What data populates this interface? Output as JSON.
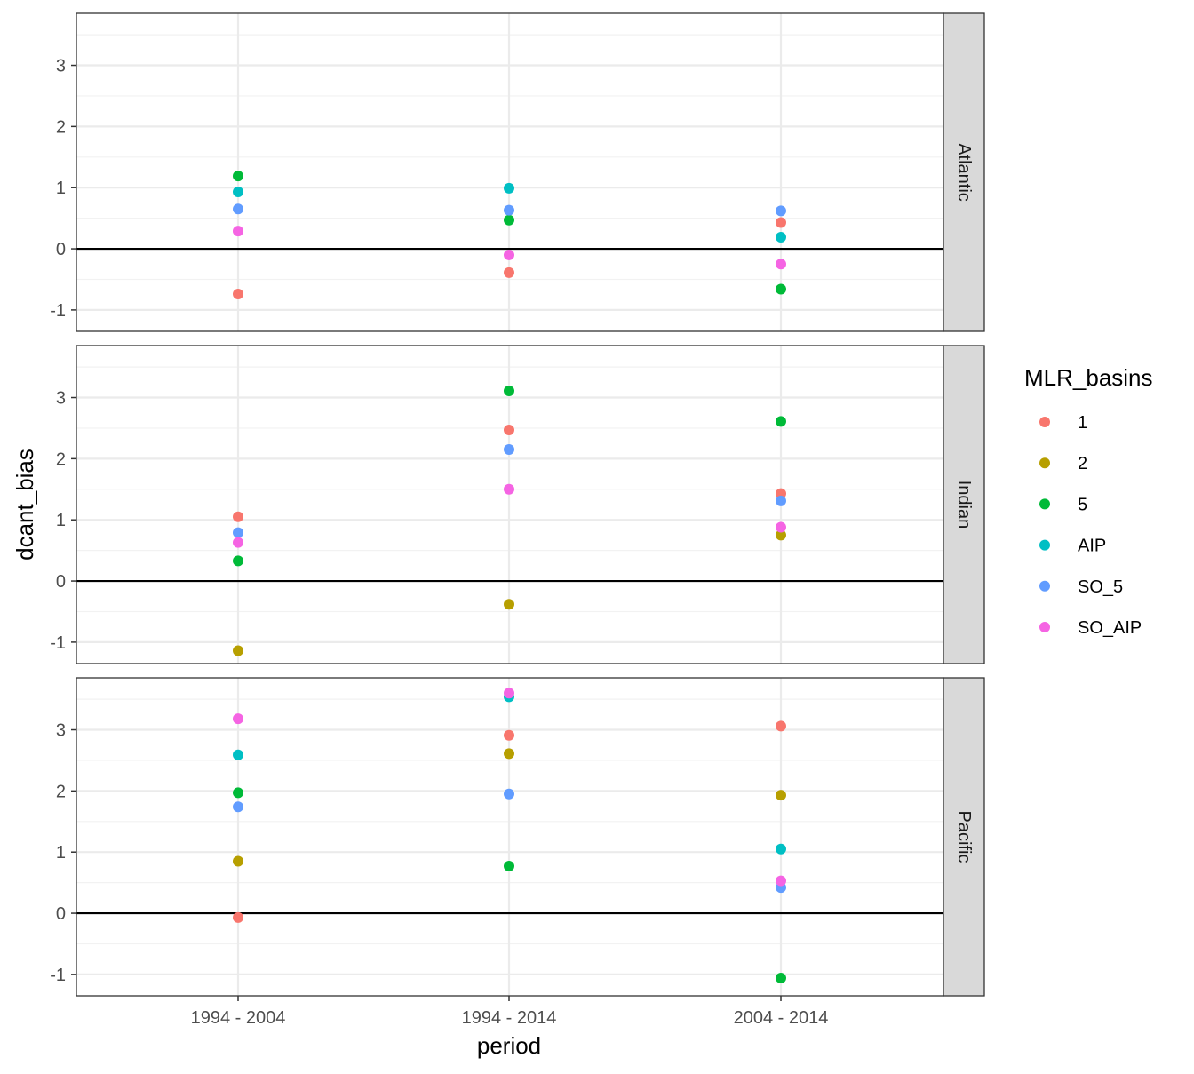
{
  "chart_data": {
    "type": "scatter",
    "xlabel": "period",
    "ylabel": "dcant_bias",
    "categories": [
      "1994 - 2004",
      "1994 - 2014",
      "2004 - 2014"
    ],
    "ylim": [
      -1.35,
      3.85
    ],
    "y_ticks": [
      "-1",
      "0",
      "1",
      "2",
      "3"
    ],
    "grid": true,
    "reference_line_y": 0,
    "legend": {
      "title": "MLR_basins",
      "position": "right",
      "entries": [
        "1",
        "2",
        "5",
        "AIP",
        "SO_5",
        "SO_AIP"
      ]
    },
    "colors": {
      "1": "#F8766D",
      "2": "#B79F00",
      "5": "#00BA38",
      "AIP": "#00BFC4",
      "SO_5": "#619CFF",
      "SO_AIP": "#F564E3"
    },
    "panels": [
      {
        "name": "Atlantic",
        "series": [
          {
            "name": "1",
            "values": [
              -0.74,
              -0.39,
              0.43
            ]
          },
          {
            "name": "5",
            "values": [
              1.19,
              0.47,
              -0.66
            ]
          },
          {
            "name": "AIP",
            "values": [
              0.93,
              0.99,
              0.19
            ]
          },
          {
            "name": "SO_5",
            "values": [
              0.65,
              0.63,
              0.62
            ]
          },
          {
            "name": "SO_AIP",
            "values": [
              0.29,
              -0.1,
              -0.25
            ]
          }
        ]
      },
      {
        "name": "Indian",
        "series": [
          {
            "name": "1",
            "values": [
              1.05,
              2.47,
              1.43
            ]
          },
          {
            "name": "2",
            "values": [
              -1.14,
              -0.38,
              0.75
            ]
          },
          {
            "name": "5",
            "values": [
              0.33,
              3.11,
              2.61
            ]
          },
          {
            "name": "SO_5",
            "values": [
              0.79,
              2.15,
              1.31
            ]
          },
          {
            "name": "SO_AIP",
            "values": [
              0.63,
              1.5,
              0.88
            ]
          }
        ]
      },
      {
        "name": "Pacific",
        "series": [
          {
            "name": "1",
            "values": [
              -0.07,
              2.91,
              3.06
            ]
          },
          {
            "name": "2",
            "values": [
              0.85,
              2.61,
              1.93
            ]
          },
          {
            "name": "5",
            "values": [
              1.97,
              0.77,
              -1.06
            ]
          },
          {
            "name": "AIP",
            "values": [
              2.59,
              3.54,
              1.05
            ]
          },
          {
            "name": "SO_5",
            "values": [
              1.74,
              1.95,
              0.42
            ]
          },
          {
            "name": "SO_AIP",
            "values": [
              3.18,
              3.6,
              0.53
            ]
          }
        ]
      }
    ]
  }
}
